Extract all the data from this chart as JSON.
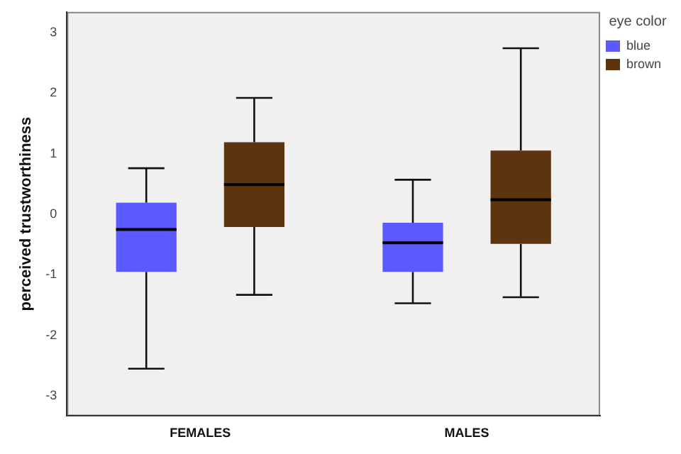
{
  "chart_data": {
    "type": "box",
    "ylabel": "perceived trustworthiness",
    "legend_title": "eye color",
    "legend": "top right",
    "grid": false,
    "categories": [
      "FEMALES",
      "MALES"
    ],
    "ylim": [
      -3.33,
      3.34
    ],
    "yticks": [
      -3,
      -2,
      -1,
      0,
      1,
      2,
      3
    ],
    "series": [
      {
        "name": "blue",
        "color": "#5a5aff",
        "boxes": [
          {
            "low": -2.55,
            "q1": -0.95,
            "median": -0.25,
            "q3": 0.19,
            "high": 0.76
          },
          {
            "low": -1.47,
            "q1": -0.95,
            "median": -0.47,
            "q3": -0.14,
            "high": 0.57
          }
        ]
      },
      {
        "name": "brown",
        "color": "#5c3510",
        "boxes": [
          {
            "low": -1.33,
            "q1": -0.21,
            "median": 0.49,
            "q3": 1.19,
            "high": 1.92
          },
          {
            "low": -1.37,
            "q1": -0.49,
            "median": 0.24,
            "q3": 1.05,
            "high": 2.74
          }
        ]
      }
    ]
  }
}
